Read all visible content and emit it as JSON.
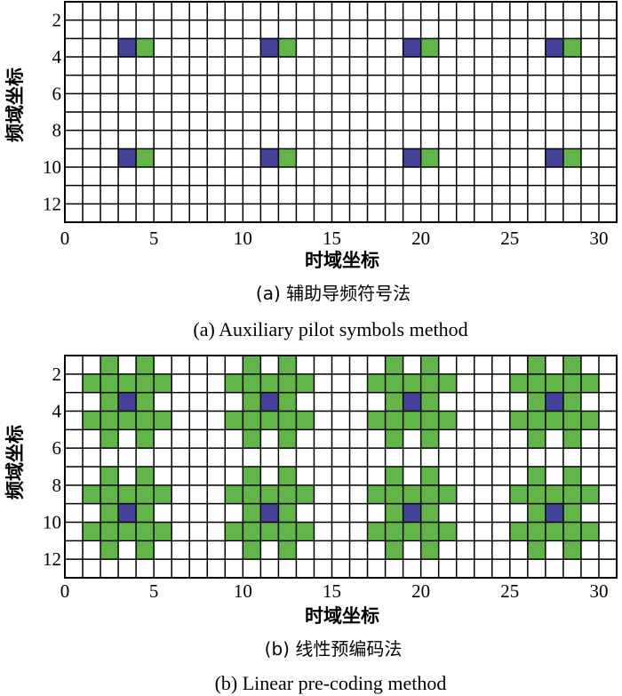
{
  "colors": {
    "pilot": "#43439a",
    "aux": "#62b548",
    "grid": "#000000",
    "empty": "#ffffff"
  },
  "chart_data": [
    {
      "type": "heatmap",
      "xlabel": "时域坐标",
      "ylabel": "频域坐标",
      "caption_cn": "(a) 辅助导频符号法",
      "caption_en": "(a) Auxiliary pilot symbols method",
      "xlim": [
        0,
        31
      ],
      "ylim": [
        1,
        13
      ],
      "xticks": [
        0,
        5,
        10,
        15,
        20,
        25,
        30
      ],
      "yticks": [
        2,
        4,
        6,
        8,
        10,
        12
      ],
      "cells": [
        {
          "x": 4,
          "y": 4,
          "v": "pilot"
        },
        {
          "x": 5,
          "y": 4,
          "v": "aux"
        },
        {
          "x": 12,
          "y": 4,
          "v": "pilot"
        },
        {
          "x": 13,
          "y": 4,
          "v": "aux"
        },
        {
          "x": 20,
          "y": 4,
          "v": "pilot"
        },
        {
          "x": 21,
          "y": 4,
          "v": "aux"
        },
        {
          "x": 28,
          "y": 4,
          "v": "pilot"
        },
        {
          "x": 29,
          "y": 4,
          "v": "aux"
        },
        {
          "x": 4,
          "y": 10,
          "v": "pilot"
        },
        {
          "x": 5,
          "y": 10,
          "v": "aux"
        },
        {
          "x": 12,
          "y": 10,
          "v": "pilot"
        },
        {
          "x": 13,
          "y": 10,
          "v": "aux"
        },
        {
          "x": 20,
          "y": 10,
          "v": "pilot"
        },
        {
          "x": 21,
          "y": 10,
          "v": "aux"
        },
        {
          "x": 28,
          "y": 10,
          "v": "pilot"
        },
        {
          "x": 29,
          "y": 10,
          "v": "aux"
        }
      ]
    },
    {
      "type": "heatmap",
      "xlabel": "时域坐标",
      "ylabel": "频域坐标",
      "caption_cn": "(b) 线性预编码法",
      "caption_en": "(b) Linear pre-coding method",
      "xlim": [
        0,
        31
      ],
      "ylim": [
        1,
        13
      ],
      "xticks": [
        0,
        5,
        10,
        15,
        20,
        25,
        30
      ],
      "yticks": [
        2,
        4,
        6,
        8,
        10,
        12
      ],
      "pilot_positions": [
        [
          4,
          4
        ],
        [
          12,
          4
        ],
        [
          20,
          4
        ],
        [
          28,
          4
        ],
        [
          4,
          10
        ],
        [
          12,
          10
        ],
        [
          20,
          10
        ],
        [
          28,
          10
        ]
      ],
      "aux_pattern_offsets": [
        [
          -1,
          -2
        ],
        [
          1,
          -2
        ],
        [
          -2,
          -1
        ],
        [
          -1,
          -1
        ],
        [
          0,
          -1
        ],
        [
          1,
          -1
        ],
        [
          2,
          -1
        ],
        [
          -1,
          0
        ],
        [
          1,
          0
        ],
        [
          -2,
          1
        ],
        [
          -1,
          1
        ],
        [
          0,
          1
        ],
        [
          1,
          1
        ],
        [
          2,
          1
        ],
        [
          -1,
          2
        ],
        [
          1,
          2
        ]
      ]
    }
  ]
}
